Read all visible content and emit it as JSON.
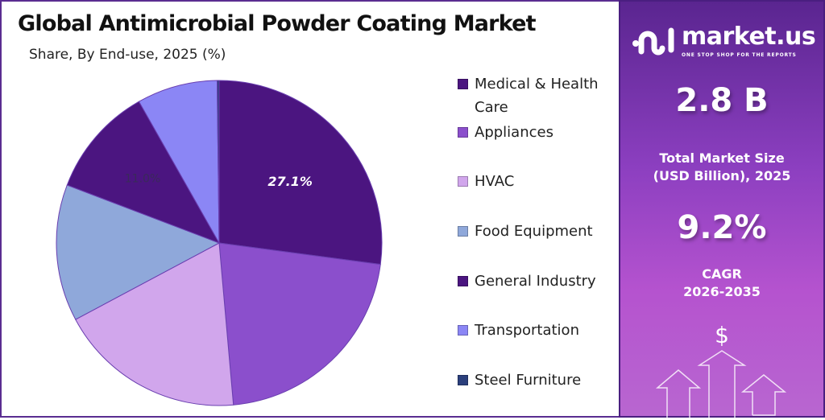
{
  "header": {
    "title": "Global Antimicrobial Powder Coating Market",
    "subtitle": "Share, By End-use, 2025 (%)"
  },
  "chart_data": {
    "type": "pie",
    "title": "Global Antimicrobial Powder Coating Market",
    "subtitle": "Share, By End-use, 2025 (%)",
    "categories": [
      "Medical & Health Care",
      "Appliances",
      "HVAC",
      "Food Equipment",
      "General Industry",
      "Transportation",
      "Steel Furniture"
    ],
    "values": [
      27.1,
      21.5,
      18.6,
      13.6,
      11.0,
      8.0,
      0.2
    ],
    "colors": [
      "#4b1580",
      "#8b4fcc",
      "#d1a6ec",
      "#8fa8da",
      "#4b1580",
      "#8b86f5",
      "#2b3f7c"
    ],
    "data_labels": [
      {
        "category": "Medical & Health Care",
        "text": "27.1%"
      },
      {
        "category": "General Industry",
        "text": "11.0%"
      }
    ],
    "legend_position": "right"
  },
  "legend": {
    "items": [
      "Medical & Health",
      "Care",
      "Appliances",
      "HVAC",
      "Food Equipment",
      "General Industry",
      "Transportation",
      "Steel Furniture"
    ]
  },
  "panel": {
    "logo_text": "market.us",
    "logo_tagline": "ONE STOP SHOP FOR THE REPORTS",
    "market_size": "2.8 B",
    "market_size_label_1": "Total Market Size",
    "market_size_label_2": "(USD Billion), 2025",
    "cagr": "9.2%",
    "cagr_label": "CAGR",
    "cagr_period": "2026-2035",
    "currency_symbol": "$",
    "background_colors": [
      "#5a2590",
      "#b553cf"
    ]
  }
}
